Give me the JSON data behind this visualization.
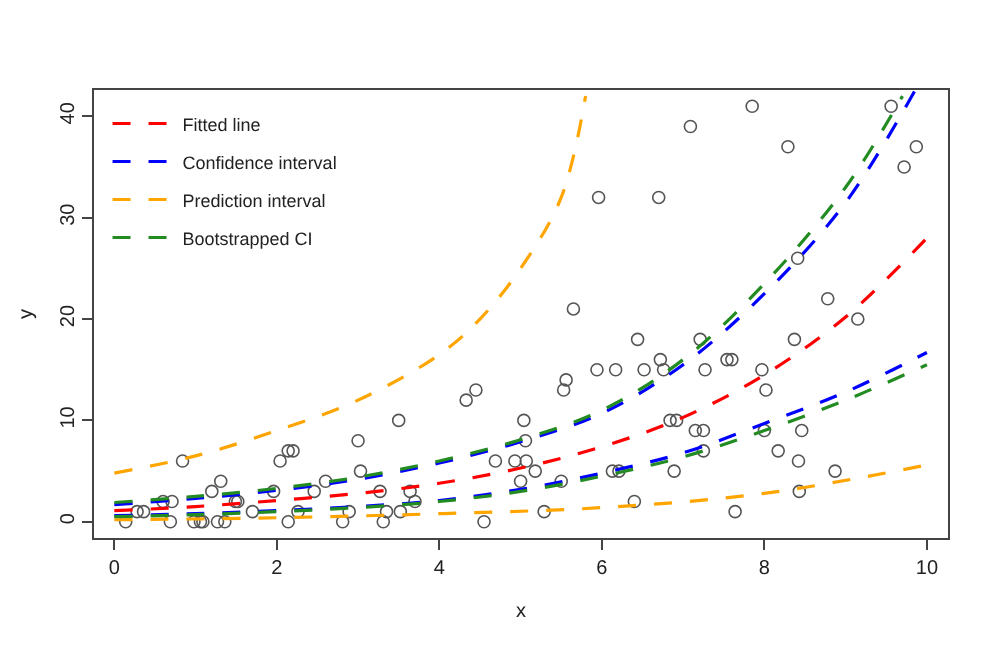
{
  "chart_data": {
    "type": "line",
    "xlabel": "x",
    "ylabel": "y",
    "xlim": [
      -0.25,
      10.26
    ],
    "ylim": [
      -1.6,
      42.6
    ],
    "xticks": [
      0,
      2,
      4,
      6,
      8,
      10
    ],
    "yticks": [
      0,
      10,
      20,
      30,
      40
    ],
    "legend": "top left",
    "series": [
      {
        "type": "scatter",
        "marker": "circle",
        "color": "#555555",
        "x": [
          0.14,
          0.28,
          0.36,
          0.6,
          0.69,
          0.71,
          0.84,
          0.98,
          1.06,
          1.09,
          1.2,
          1.27,
          1.31,
          1.36,
          1.49,
          1.52,
          1.7,
          1.96,
          2.04,
          2.14,
          2.2,
          2.14,
          2.26,
          2.46,
          2.6,
          2.81,
          2.89,
          3.0,
          3.03,
          3.27,
          3.31,
          3.35,
          3.5,
          3.52,
          3.64,
          3.7,
          4.33,
          4.45,
          4.55,
          4.69,
          4.93,
          5.0,
          5.04,
          5.06,
          5.07,
          5.18,
          5.29,
          5.5,
          5.53,
          5.56,
          5.65,
          5.94,
          5.96,
          6.13,
          6.17,
          6.21,
          6.4,
          6.44,
          6.52,
          6.7,
          6.72,
          6.76,
          6.84,
          6.89,
          6.92,
          7.09,
          7.15,
          7.21,
          7.25,
          7.25,
          7.27,
          7.54,
          7.6,
          7.64,
          7.85,
          7.97,
          8.0,
          8.02,
          8.17,
          8.29,
          8.37,
          8.41,
          8.42,
          8.43,
          8.46,
          8.78,
          8.87,
          9.15,
          9.56,
          9.72,
          9.87
        ],
        "values": [
          0,
          1,
          1,
          2,
          0,
          2,
          6,
          0,
          0,
          0,
          3,
          0,
          4,
          0,
          2,
          2,
          1,
          3,
          6,
          7,
          7,
          0,
          1,
          3,
          4,
          0,
          1,
          8,
          5,
          3,
          0,
          1,
          10,
          1,
          3,
          2,
          12,
          13,
          0,
          6,
          6,
          4,
          10,
          8,
          6,
          5,
          1,
          4,
          13,
          14,
          21,
          15,
          32,
          5,
          15,
          5,
          2,
          18,
          15,
          32,
          16,
          15,
          10,
          5,
          10,
          39,
          9,
          18,
          9,
          7,
          15,
          16,
          16,
          1,
          41,
          15,
          9,
          13,
          7,
          37,
          18,
          26,
          6,
          3,
          9,
          22,
          5,
          20,
          41,
          35,
          37
        ]
      },
      {
        "name": "Fitted line",
        "color": "#ff0000",
        "line_style": "dashed",
        "x": [
          0,
          1,
          2,
          3,
          4,
          5,
          6,
          7,
          8,
          9,
          10
        ],
        "values": [
          1.1,
          1.5,
          2.1,
          2.8,
          3.8,
          5.3,
          7.4,
          10.3,
          14.5,
          20.2,
          28.0
        ]
      },
      {
        "name": "Confidence interval",
        "color": "#0000ff",
        "line_style": "dashed",
        "x": [
          0,
          1,
          2,
          3,
          4,
          5,
          6,
          7,
          8,
          9,
          9.85
        ],
        "values": [
          1.7,
          2.3,
          3.1,
          4.2,
          5.8,
          7.9,
          10.7,
          15.5,
          22.5,
          31.5,
          42.5
        ]
      },
      {
        "color": "#0000ff",
        "line_style": "dashed",
        "x": [
          0,
          1,
          2,
          3,
          4,
          5,
          6,
          7,
          8,
          9,
          10
        ],
        "values": [
          0.6,
          0.8,
          1.1,
          1.5,
          2.1,
          3.2,
          4.8,
          6.8,
          9.7,
          12.8,
          16.7
        ]
      },
      {
        "name": "Prediction interval",
        "color": "#ffa500",
        "line_style": "dashed",
        "x": [
          0,
          1,
          2,
          3,
          4,
          4.5,
          5,
          5.5,
          5.8
        ],
        "values": [
          4.8,
          6.5,
          9.0,
          12.0,
          16.5,
          20,
          25,
          32,
          42
        ]
      },
      {
        "color": "#ffa500",
        "line_style": "dashed",
        "x": [
          0,
          2,
          4,
          6,
          8,
          10
        ],
        "values": [
          0.2,
          0.4,
          0.8,
          1.4,
          2.8,
          5.6
        ]
      },
      {
        "name": "Bootstrapped CI",
        "color": "#228b22",
        "line_style": "dashed",
        "x": [
          0,
          1,
          2,
          3,
          4,
          5,
          6,
          7,
          8,
          9,
          9.7
        ],
        "values": [
          1.9,
          2.5,
          3.3,
          4.4,
          6.0,
          8.1,
          11.0,
          16.0,
          23.5,
          33,
          42
        ]
      },
      {
        "color": "#228b22",
        "line_style": "dashed",
        "x": [
          0,
          1,
          2,
          3,
          4,
          5,
          6,
          7,
          8,
          9,
          10
        ],
        "values": [
          0.5,
          0.7,
          1.0,
          1.4,
          2.0,
          3.0,
          4.5,
          6.4,
          9.0,
          12.0,
          15.5
        ]
      }
    ]
  }
}
